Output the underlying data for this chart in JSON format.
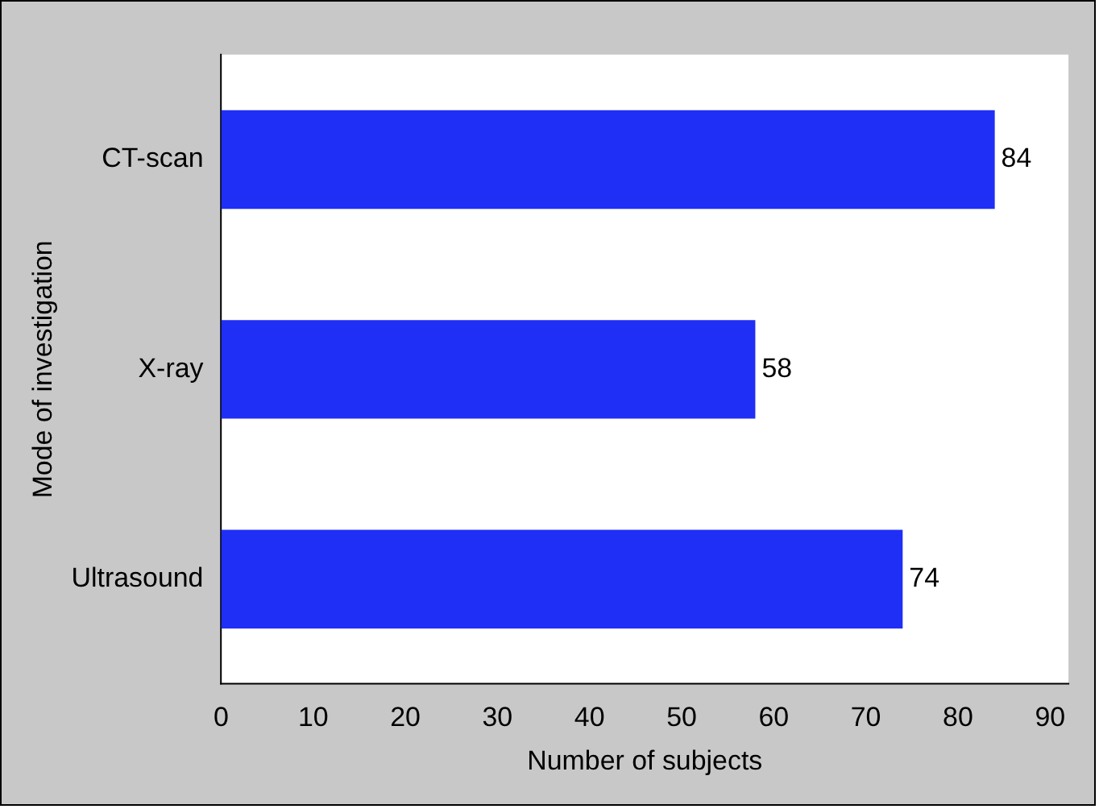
{
  "chart_data": {
    "type": "bar",
    "orientation": "horizontal",
    "categories": [
      "CT-scan",
      "X-ray",
      "Ultrasound"
    ],
    "values": [
      84,
      58,
      74
    ],
    "color": "#1f2ff5",
    "xlabel": "Number of subjects",
    "ylabel": "Mode of investigation",
    "xlim": [
      0,
      92
    ],
    "xticks": [
      0,
      10,
      20,
      30,
      40,
      50,
      60,
      70,
      80,
      90
    ],
    "data_labels": true,
    "grid": false,
    "legend": false
  }
}
